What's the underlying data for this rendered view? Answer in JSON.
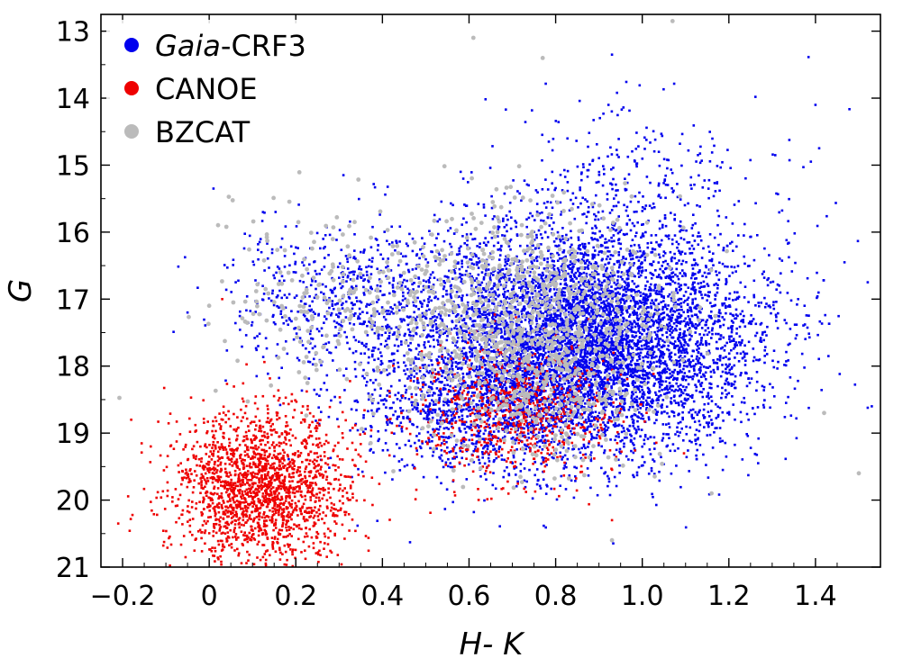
{
  "chart_data": {
    "type": "scatter",
    "xlabel": "H- K",
    "ylabel": "G",
    "xlim": [
      -0.25,
      1.55
    ],
    "ylim": [
      21,
      12.75
    ],
    "y_inverted": true,
    "x_ticks": [
      -0.2,
      0,
      0.2,
      0.4,
      0.6,
      0.8,
      1.0,
      1.2,
      1.4
    ],
    "x_tick_labels": [
      "−0.2",
      "0",
      "0.2",
      "0.4",
      "0.6",
      "0.8",
      "1.0",
      "1.2",
      "1.4"
    ],
    "y_ticks": [
      13,
      14,
      15,
      16,
      17,
      18,
      19,
      20,
      21
    ],
    "y_tick_labels": [
      "13",
      "14",
      "15",
      "16",
      "17",
      "18",
      "19",
      "20",
      "21"
    ],
    "legend_position": "top-left",
    "grid": false,
    "series": [
      {
        "name": "Gaia-CRF3",
        "legend_italic": "Gaia",
        "legend_rest": "-CRF3",
        "color": "#0000ee",
        "approx_count": 9000,
        "clusters": [
          {
            "n": 6800,
            "x_mean": 0.86,
            "x_sd": 0.2,
            "y_mean": 17.6,
            "y_sd": 0.85
          },
          {
            "n": 900,
            "x_mean": 0.62,
            "x_sd": 0.14,
            "y_mean": 18.6,
            "y_sd": 0.5
          },
          {
            "n": 550,
            "x_mean": 0.3,
            "x_sd": 0.13,
            "y_mean": 17.0,
            "y_sd": 0.55
          },
          {
            "n": 250,
            "x_mean": 1.0,
            "x_sd": 0.15,
            "y_mean": 15.2,
            "y_sd": 0.6
          }
        ],
        "outliers": [
          {
            "x": 0.93,
            "y": 13.35
          },
          {
            "x": 0.01,
            "y": 15.35
          },
          {
            "x": 0.31,
            "y": 15.15
          },
          {
            "x": 1.36,
            "y": 17.0
          },
          {
            "x": 1.53,
            "y": 18.6
          },
          {
            "x": -0.05,
            "y": 17.2
          },
          {
            "x": 1.4,
            "y": 14.1
          },
          {
            "x": 1.43,
            "y": 17.85
          }
        ]
      },
      {
        "name": "CANOE",
        "color": "#ee0000",
        "approx_count": 2600,
        "clusters": [
          {
            "n": 1900,
            "x_mean": 0.12,
            "x_sd": 0.1,
            "y_mean": 19.8,
            "y_sd": 0.55
          },
          {
            "n": 700,
            "x_mean": 0.7,
            "x_sd": 0.12,
            "y_mean": 18.7,
            "y_sd": 0.5
          }
        ],
        "outliers": [
          {
            "x": -0.21,
            "y": 20.35
          },
          {
            "x": -0.18,
            "y": 18.8
          },
          {
            "x": 0.03,
            "y": 17.0
          },
          {
            "x": 0.93,
            "y": 20.3
          }
        ]
      },
      {
        "name": "BZCAT",
        "color": "#bbbbbb",
        "approx_count": 1300,
        "clusters": [
          {
            "n": 1100,
            "x_mean": 0.74,
            "x_sd": 0.15,
            "y_mean": 17.5,
            "y_sd": 0.9
          },
          {
            "n": 200,
            "x_mean": 0.3,
            "x_sd": 0.15,
            "y_mean": 17.0,
            "y_sd": 0.7
          }
        ],
        "outliers": [
          {
            "x": 1.07,
            "y": 12.85
          },
          {
            "x": 0.61,
            "y": 13.1
          },
          {
            "x": 0.77,
            "y": 13.4
          },
          {
            "x": 1.42,
            "y": 18.7
          },
          {
            "x": 1.5,
            "y": 19.6
          },
          {
            "x": 0.93,
            "y": 20.6
          },
          {
            "x": 1.16,
            "y": 19.9
          },
          {
            "x": 0.0,
            "y": 17.1
          }
        ]
      }
    ]
  }
}
